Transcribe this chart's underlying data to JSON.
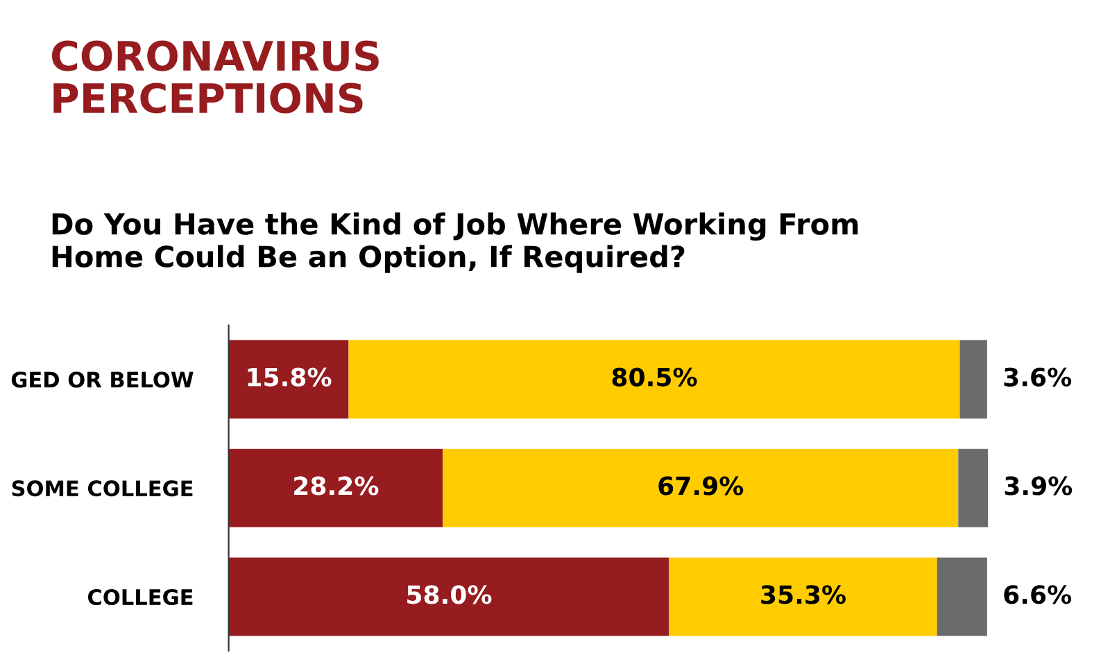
{
  "chart_data": {
    "type": "bar",
    "orientation": "horizontal",
    "stacked": true,
    "title": "CORONAVIRUS\nPERCEPTIONS",
    "subtitle": "Do You Have the Kind of Job Where Working From\nHome Could Be an Option, If Required?",
    "categories": [
      "GED OR BELOW",
      "SOME COLLEGE",
      "COLLEGE"
    ],
    "series": [
      {
        "color": "#961c1f",
        "values": [
          15.8,
          28.2,
          58.0
        ],
        "value_labels": [
          "15.8%",
          "28.2%",
          "58.0%"
        ]
      },
      {
        "color": "#ffcc00",
        "values": [
          80.5,
          67.9,
          35.3
        ],
        "value_labels": [
          "80.5%",
          "67.9%",
          "35.3%"
        ]
      },
      {
        "color": "#6b6b6b",
        "values": [
          3.6,
          3.9,
          6.6
        ],
        "value_labels": [
          "3.6%",
          "3.9%",
          "6.6%"
        ]
      }
    ],
    "xlim": [
      0,
      100
    ],
    "tick_labels": "y",
    "grid": false,
    "legend": false
  }
}
